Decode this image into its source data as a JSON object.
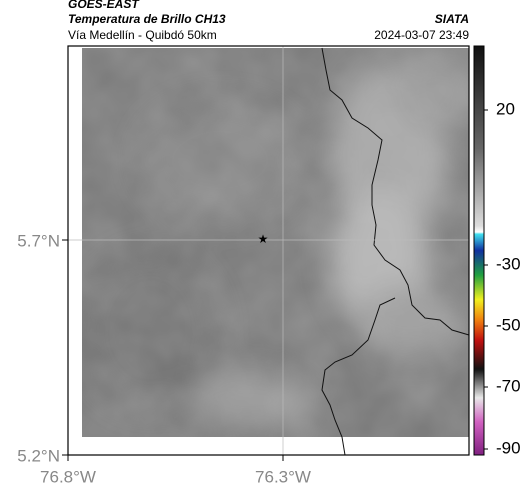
{
  "header": {
    "source": "GOES-EAST",
    "product": "Temperatura de Brillo CH13",
    "brand": "SIATA",
    "region": "Vía Medellín - Quibdó 50km",
    "timestamp": "2024-03-07 23:49"
  },
  "map": {
    "lat_labels": [
      "5.7°N",
      "5.2°N"
    ],
    "lon_labels": [
      "76.8°W",
      "76.3°W"
    ]
  },
  "colorbar": {
    "labels": [
      "20",
      "-30",
      "-50",
      "-70",
      "-90"
    ]
  }
}
